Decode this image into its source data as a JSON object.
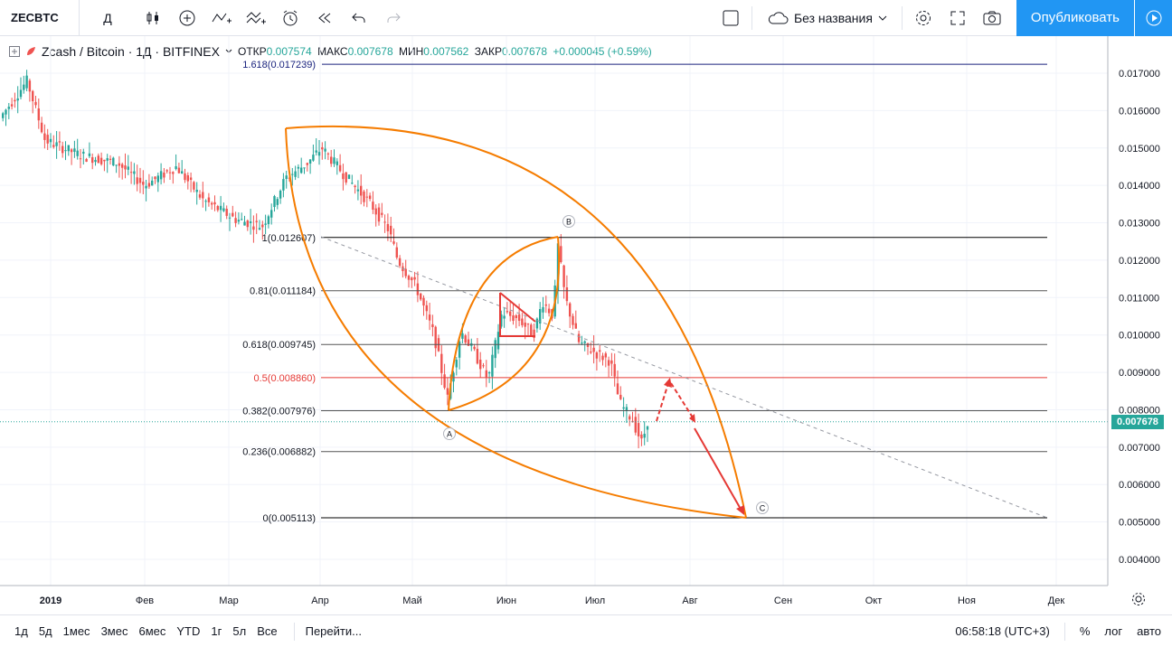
{
  "toolbar": {
    "symbol": "ZECBTC",
    "interval": "Д",
    "layout_name": "Без названия",
    "publish_label": "Опубликовать",
    "icons": [
      "candles-icon",
      "add-indicator-icon",
      "indicators-icon",
      "compare-icon",
      "alert-icon",
      "replay-icon",
      "undo-icon",
      "redo-icon",
      "fullscreen-toggle-icon",
      "cloud-icon",
      "settings-icon",
      "fullscreen-icon",
      "camera-icon",
      "play-icon"
    ]
  },
  "legend": {
    "symbol_name": "Zcash / Bitcoin · 1Д · BITFINEX",
    "open_label": "ОТКР",
    "open": "0.007574",
    "high_label": "МАКС",
    "high": "0.007678",
    "low_label": "МИН",
    "low": "0.007562",
    "close_label": "ЗАКР",
    "close": "0.007678",
    "change": "+0.000045 (+0.59%)"
  },
  "current_price": "0.007678",
  "chart_data": {
    "type": "candlestick",
    "symbol": "ZECBTC",
    "x_tick_labels": [
      "2019",
      "Фев",
      "Мар",
      "Апр",
      "Май",
      "Июн",
      "Июл",
      "Авг",
      "Сен",
      "Окт",
      "Ноя",
      "Дек"
    ],
    "y_tick_labels": [
      "0.017000",
      "0.016000",
      "0.015000",
      "0.014000",
      "0.013000",
      "0.012000",
      "0.011000",
      "0.010000",
      "0.009000",
      "0.008000",
      "0.007000",
      "0.006000",
      "0.005000",
      "0.004000"
    ],
    "ylim": [
      0.0036,
      0.0177
    ],
    "fib_levels": [
      {
        "label": "1.618(0.017239)",
        "value": 0.017239,
        "color": "#1a237e"
      },
      {
        "label": "1(0.012607)",
        "value": 0.012607,
        "color": "#000000"
      },
      {
        "label": "0.81(0.011184)",
        "value": 0.011184,
        "color": "#555555"
      },
      {
        "label": "0.618(0.009745)",
        "value": 0.009745,
        "color": "#555555"
      },
      {
        "label": "0.5(0.008860)",
        "value": 0.00886,
        "color": "#e53935"
      },
      {
        "label": "0.382(0.007976)",
        "value": 0.007976,
        "color": "#555555"
      },
      {
        "label": "0.236(0.006882)",
        "value": 0.006882,
        "color": "#555555"
      },
      {
        "label": "0(0.005113)",
        "value": 0.005113,
        "color": "#000000"
      }
    ],
    "points": [
      "A",
      "B",
      "C"
    ]
  },
  "bottom": {
    "ranges": [
      "1д",
      "5д",
      "1мес",
      "3мес",
      "6мес",
      "YTD",
      "1г",
      "5л",
      "Все"
    ],
    "goto": "Перейти...",
    "time": "06:58:18 (UTC+3)",
    "percent": "%",
    "log": "лог",
    "auto": "авто"
  }
}
